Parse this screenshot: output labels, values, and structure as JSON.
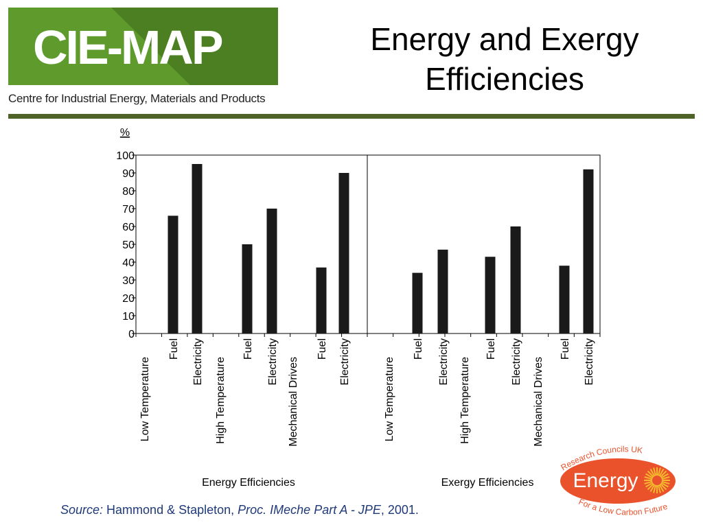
{
  "header": {
    "logo_text": "CIE-MAP",
    "logo_subtitle": "Centre for Industrial Energy, Materials and Products",
    "title_line1": "Energy and Exergy",
    "title_line2": "Efficiencies"
  },
  "colors": {
    "brand_green": "#4f6228",
    "logo_green_light": "#5e9a2c",
    "logo_green_dark": "#4c7f22",
    "bar": "#1a1a1a",
    "rcuk_orange": "#e9522b",
    "rcuk_sun": "#f5b82e",
    "source_blue": "#1f3a78"
  },
  "chart_data": {
    "type": "bar",
    "ylabel": "%",
    "ylim": [
      0,
      100
    ],
    "yticks": [
      0,
      10,
      20,
      30,
      40,
      50,
      60,
      70,
      80,
      90,
      100
    ],
    "grid": false,
    "panels": [
      {
        "title": "Energy Efficiencies",
        "groups": [
          {
            "name": "Low Temperature",
            "bars": [
              {
                "label": "Fuel",
                "value": 66
              },
              {
                "label": "Electricity",
                "value": 95
              }
            ]
          },
          {
            "name": "High  Temperature",
            "bars": [
              {
                "label": "Fuel",
                "value": 50
              },
              {
                "label": "Electricity",
                "value": 70
              }
            ]
          },
          {
            "name": "Mechanical Drives",
            "bars": [
              {
                "label": "Fuel",
                "value": 37
              },
              {
                "label": "Electricity",
                "value": 90
              }
            ]
          }
        ]
      },
      {
        "title": "Exergy Efficiencies",
        "groups": [
          {
            "name": "Low Temperature",
            "bars": [
              {
                "label": "Fuel",
                "value": 34
              },
              {
                "label": "Electricity",
                "value": 47
              }
            ]
          },
          {
            "name": "High  Temperature",
            "bars": [
              {
                "label": "Fuel",
                "value": 43
              },
              {
                "label": "Electricity",
                "value": 60
              }
            ]
          },
          {
            "name": "Mechanical Drives",
            "bars": [
              {
                "label": "Fuel",
                "value": 38
              },
              {
                "label": "Electricity",
                "value": 92
              }
            ]
          }
        ]
      }
    ]
  },
  "source": {
    "prefix": "Source:",
    "authors": " Hammond & Stapleton, ",
    "journal": "Proc. IMeche Part A - JPE",
    "year": ", 2001."
  },
  "rcuk_logo": {
    "top_text": "Research Councils UK",
    "main_text": "Energy",
    "bottom_text": "For a Low Carbon Future"
  }
}
